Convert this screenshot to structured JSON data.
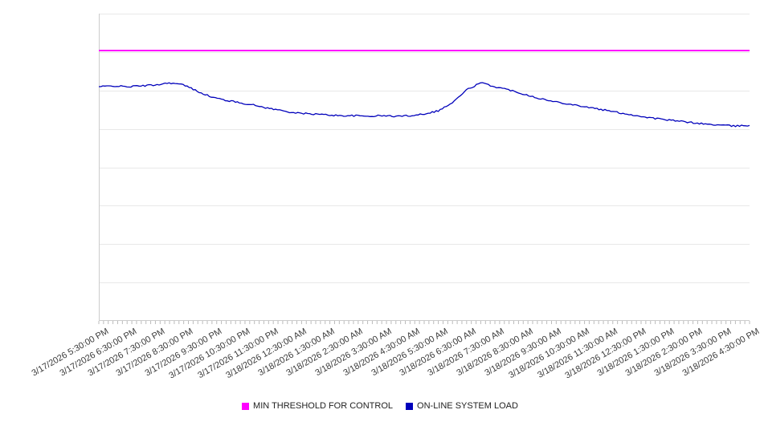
{
  "chart_data": {
    "type": "line",
    "title": "",
    "xlabel": "",
    "ylabel": "",
    "ylim": [
      0,
      100
    ],
    "y_gridlines": [
      12.5,
      25,
      37.5,
      50,
      62.5,
      75,
      87.5,
      100
    ],
    "grid": "horizontal",
    "legend_position": "bottom",
    "sample_interval_minutes": 30,
    "x_labels": [
      "3/17/2026 5:30:00 PM",
      "3/17/2026 6:30:00 PM",
      "3/17/2026 7:30:00 PM",
      "3/17/2026 8:30:00 PM",
      "3/17/2026 9:30:00 PM",
      "3/17/2026 10:30:00 PM",
      "3/17/2026 11:30:00 PM",
      "3/18/2026 12:30:00 AM",
      "3/18/2026 1:30:00 AM",
      "3/18/2026 2:30:00 AM",
      "3/18/2026 3:30:00 AM",
      "3/18/2026 4:30:00 AM",
      "3/18/2026 5:30:00 AM",
      "3/18/2026 6:30:00 AM",
      "3/18/2026 7:30:00 AM",
      "3/18/2026 8:30:00 AM",
      "3/18/2026 9:30:00 AM",
      "3/18/2026 10:30:00 AM",
      "3/18/2026 11:30:00 AM",
      "3/18/2026 12:30:00 PM",
      "3/18/2026 1:30:00 PM",
      "3/18/2026 2:30:00 PM",
      "3/18/2026 3:30:00 PM",
      "3/18/2026 4:30:00 PM"
    ],
    "series": [
      {
        "name": "MIN THRESHOLD FOR CONTROL",
        "color": "#ff00ff",
        "type": "threshold",
        "value": 88
      },
      {
        "name": "ON-LINE SYSTEM LOAD",
        "color": "#0000bb",
        "type": "line",
        "values": [
          76.2,
          76.5,
          76.2,
          76.5,
          76.8,
          77.5,
          76.8,
          74.7,
          72.8,
          71.8,
          71.0,
          70.2,
          69.2,
          68.4,
          67.6,
          67.4,
          67.1,
          66.8,
          66.8,
          66.6,
          66.8,
          66.6,
          66.8,
          67.4,
          68.4,
          71.0,
          75.2,
          77.5,
          76.2,
          75.2,
          73.9,
          72.6,
          71.5,
          70.8,
          70.0,
          69.2,
          68.4,
          67.6,
          66.8,
          66.1,
          65.5,
          65.0,
          64.5,
          64.0,
          63.7,
          63.4,
          63.7
        ]
      }
    ]
  }
}
